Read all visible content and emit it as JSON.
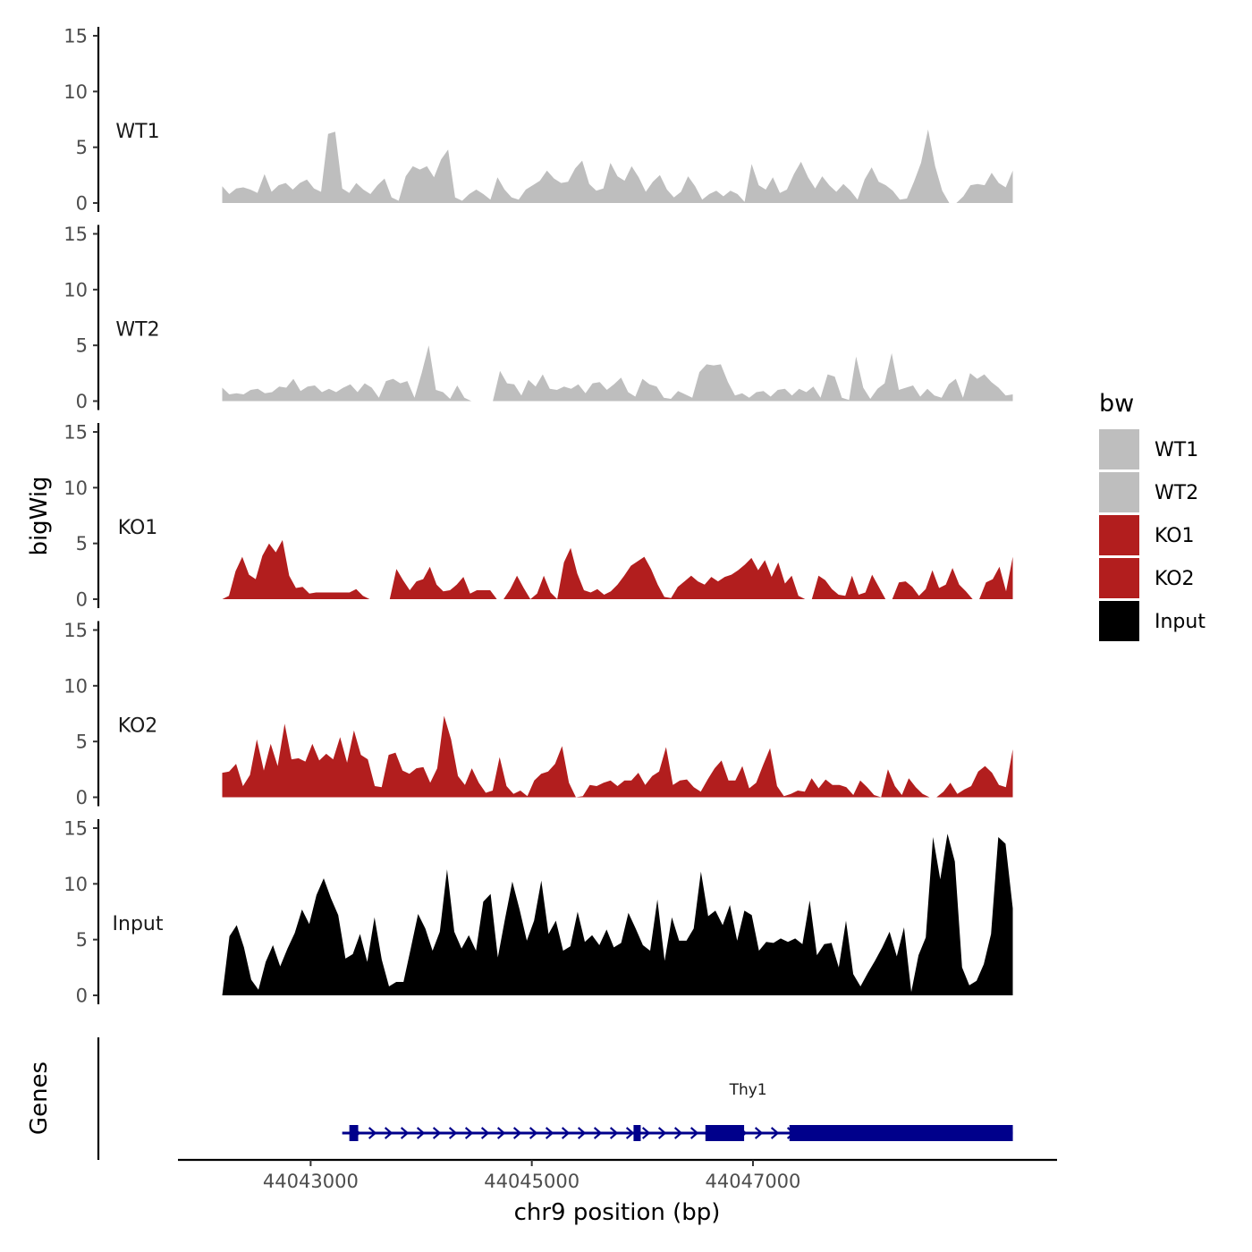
{
  "chart_data": {
    "type": "area",
    "title": "",
    "ylabel": "bigWig",
    "xlabel": "chr9 position (bp)",
    "xlim": [
      44041800,
      44049750
    ],
    "ylim": [
      0,
      15
    ],
    "yticks": [
      0,
      5,
      10,
      15
    ],
    "xticks": [
      44043000,
      44045000,
      44047000
    ],
    "x_start": 44042200,
    "x_end": 44049350,
    "colors": {
      "WT": "#bebebe",
      "KO": "#b21e1e",
      "Input": "#000000",
      "gene": "#00008b"
    },
    "tracks": [
      {
        "name": "WT1",
        "color": "#bebebe",
        "values": [
          1.5,
          0.8,
          1.3,
          1.4,
          1.2,
          0.9,
          2.6,
          1.0,
          1.6,
          1.8,
          1.2,
          1.8,
          2.1,
          1.3,
          1.0,
          6.2,
          6.4,
          1.3,
          0.9,
          1.8,
          1.2,
          0.8,
          1.6,
          2.2,
          0.5,
          0.2,
          2.4,
          3.3,
          3.0,
          3.3,
          2.3,
          3.9,
          4.8,
          0.5,
          0.2,
          0.8,
          1.2,
          0.8,
          0.3,
          2.3,
          1.2,
          0.5,
          0.3,
          1.2,
          1.6,
          2.0,
          2.9,
          2.2,
          1.8,
          1.9,
          3.1,
          3.8,
          1.7,
          1.1,
          1.3,
          3.6,
          2.4,
          2.0,
          3.3,
          2.3,
          1.0,
          1.9,
          2.5,
          1.2,
          0.5,
          1.0,
          2.4,
          1.5,
          0.3,
          0.8,
          1.1,
          0.6,
          1.1,
          0.8,
          0.1,
          3.5,
          1.6,
          1.2,
          2.3,
          0.9,
          1.2,
          2.6,
          3.7,
          2.3,
          1.3,
          2.4,
          1.6,
          1.0,
          1.7,
          1.1,
          0.3,
          2.1,
          3.2,
          1.9,
          1.6,
          1.1,
          0.3,
          0.4,
          1.9,
          3.6,
          6.6,
          3.3,
          1.1,
          0.0,
          0.0,
          0.6,
          1.6,
          1.7,
          1.6,
          2.7,
          1.8,
          1.4,
          2.9
        ]
      },
      {
        "name": "WT2",
        "color": "#bebebe",
        "values": [
          1.2,
          0.6,
          0.7,
          0.6,
          1.0,
          1.1,
          0.7,
          0.8,
          1.3,
          1.2,
          2.0,
          0.9,
          1.3,
          1.4,
          0.8,
          1.1,
          0.8,
          1.2,
          1.5,
          0.8,
          1.6,
          1.2,
          0.3,
          1.8,
          2.0,
          1.6,
          1.8,
          0.3,
          2.5,
          5.0,
          1.0,
          0.8,
          0.2,
          1.4,
          0.3,
          0.0,
          0.0,
          0.0,
          0.0,
          2.7,
          1.6,
          1.5,
          0.5,
          1.9,
          1.3,
          2.4,
          1.1,
          1.0,
          1.3,
          1.1,
          1.5,
          0.7,
          1.6,
          1.7,
          1.0,
          1.5,
          2.1,
          0.8,
          0.4,
          2.0,
          1.5,
          1.3,
          0.3,
          0.2,
          0.9,
          0.6,
          0.3,
          2.6,
          3.3,
          3.2,
          3.3,
          1.7,
          0.5,
          0.7,
          0.3,
          0.8,
          0.9,
          0.4,
          1.0,
          1.1,
          0.5,
          1.1,
          0.8,
          1.3,
          0.3,
          2.4,
          2.2,
          0.3,
          0.1,
          4.0,
          1.2,
          0.2,
          1.1,
          1.6,
          4.3,
          1.0,
          1.2,
          1.4,
          0.4,
          1.1,
          0.5,
          0.3,
          1.5,
          2.0,
          0.3,
          2.5,
          2.0,
          2.4,
          1.7,
          1.2,
          0.5,
          0.6
        ]
      },
      {
        "name": "KO1",
        "color": "#b21e1e",
        "values": [
          0.0,
          0.3,
          2.5,
          3.8,
          2.2,
          1.8,
          3.9,
          5.0,
          4.2,
          5.3,
          2.1,
          1.0,
          1.1,
          0.5,
          0.6,
          0.6,
          0.6,
          0.6,
          0.6,
          0.6,
          0.9,
          0.3,
          0.0,
          0.0,
          0.0,
          0.0,
          2.7,
          1.7,
          0.8,
          1.6,
          1.8,
          2.9,
          1.3,
          0.7,
          0.8,
          1.3,
          2.0,
          0.5,
          0.8,
          0.8,
          0.8,
          0.0,
          0.0,
          0.9,
          2.1,
          1.0,
          0.0,
          0.5,
          2.1,
          0.6,
          0.0,
          3.3,
          4.6,
          2.3,
          0.8,
          0.6,
          0.9,
          0.4,
          0.7,
          1.3,
          2.1,
          3.0,
          3.4,
          3.8,
          2.7,
          1.3,
          0.2,
          0.1,
          1.1,
          1.6,
          2.1,
          1.6,
          1.3,
          2.0,
          1.6,
          2.0,
          2.2,
          2.6,
          3.1,
          3.7,
          2.6,
          3.5,
          2.0,
          3.3,
          1.4,
          2.1,
          0.3,
          0.0,
          0.0,
          2.1,
          1.7,
          0.9,
          0.4,
          0.3,
          2.1,
          0.4,
          0.6,
          2.2,
          1.1,
          0.0,
          0.0,
          1.5,
          1.6,
          1.1,
          0.3,
          0.9,
          2.6,
          1.0,
          1.3,
          2.8,
          1.3,
          0.7,
          0.0,
          0.0,
          1.5,
          1.8,
          2.9,
          0.7,
          3.8
        ]
      },
      {
        "name": "KO2",
        "color": "#b21e1e",
        "values": [
          2.2,
          2.3,
          3.0,
          1.0,
          2.0,
          5.2,
          2.4,
          4.8,
          2.8,
          6.6,
          3.4,
          3.5,
          3.2,
          4.8,
          3.3,
          3.9,
          3.4,
          5.4,
          3.1,
          6.0,
          3.8,
          3.4,
          1.0,
          0.9,
          3.8,
          4.0,
          2.4,
          2.1,
          2.6,
          2.7,
          1.3,
          2.6,
          7.3,
          5.2,
          1.9,
          1.1,
          2.6,
          1.3,
          0.4,
          0.6,
          3.6,
          1.0,
          0.3,
          0.6,
          0.1,
          1.5,
          2.1,
          2.3,
          3.0,
          4.6,
          1.3,
          0.0,
          0.1,
          1.1,
          1.0,
          1.3,
          1.5,
          1.0,
          1.5,
          1.5,
          2.2,
          1.1,
          1.9,
          2.3,
          4.5,
          1.1,
          1.5,
          1.6,
          0.9,
          0.5,
          1.6,
          2.6,
          3.3,
          1.5,
          1.5,
          2.8,
          0.8,
          1.3,
          2.9,
          4.4,
          1.0,
          0.1,
          0.3,
          0.6,
          0.5,
          1.7,
          0.8,
          1.6,
          1.1,
          1.1,
          0.9,
          0.2,
          1.5,
          0.9,
          0.2,
          0.0,
          2.5,
          1.0,
          0.2,
          1.7,
          0.9,
          0.3,
          0.0,
          0.0,
          0.5,
          1.3,
          0.3,
          0.7,
          1.0,
          2.3,
          2.8,
          2.2,
          1.1,
          0.9,
          4.3
        ]
      },
      {
        "name": "Input",
        "color": "#000000",
        "values": [
          0.0,
          5.3,
          6.3,
          4.3,
          1.4,
          0.5,
          3.0,
          4.5,
          2.6,
          4.2,
          5.6,
          7.7,
          6.4,
          9.0,
          10.5,
          8.7,
          7.2,
          3.3,
          3.7,
          5.5,
          3.0,
          7.0,
          3.2,
          0.8,
          1.2,
          1.2,
          4.2,
          7.3,
          6.0,
          4.0,
          5.7,
          11.3,
          5.7,
          4.2,
          5.4,
          4.0,
          8.4,
          9.1,
          3.4,
          6.9,
          10.2,
          7.7,
          4.9,
          6.7,
          10.3,
          5.5,
          6.7,
          4.0,
          4.4,
          7.5,
          4.8,
          5.4,
          4.5,
          5.9,
          4.3,
          4.7,
          7.4,
          6.0,
          4.5,
          4.0,
          8.6,
          3.1,
          7.0,
          4.9,
          4.9,
          6.0,
          11.1,
          7.1,
          7.6,
          6.3,
          8.1,
          4.9,
          7.6,
          7.2,
          4.0,
          4.8,
          4.7,
          5.1,
          4.8,
          5.1,
          4.6,
          8.5,
          3.6,
          4.6,
          4.7,
          2.5,
          6.7,
          1.9,
          0.8,
          2.0,
          3.1,
          4.3,
          5.7,
          3.5,
          6.1,
          0.3,
          3.6,
          5.2,
          14.2,
          10.4,
          14.5,
          12.0,
          2.5,
          0.9,
          1.3,
          2.8,
          5.5,
          14.2,
          13.6,
          7.8
        ]
      }
    ]
  },
  "genes": {
    "label": "Genes",
    "items": [
      {
        "name": "Thy1",
        "start": 44043350,
        "end": 44049350,
        "exons": [
          [
            44043350,
            44043430
          ],
          [
            44045920,
            44045980
          ],
          [
            44046570,
            44046920
          ],
          [
            44047330,
            44049350
          ]
        ]
      }
    ]
  },
  "legend": {
    "title": "bw",
    "items": [
      {
        "label": "WT1",
        "color": "#bebebe"
      },
      {
        "label": "WT2",
        "color": "#bebebe"
      },
      {
        "label": "KO1",
        "color": "#b21e1e"
      },
      {
        "label": "KO2",
        "color": "#b21e1e"
      },
      {
        "label": "Input",
        "color": "#000000"
      }
    ]
  },
  "xtick_labels": [
    "44043000",
    "44045000",
    "44047000"
  ]
}
